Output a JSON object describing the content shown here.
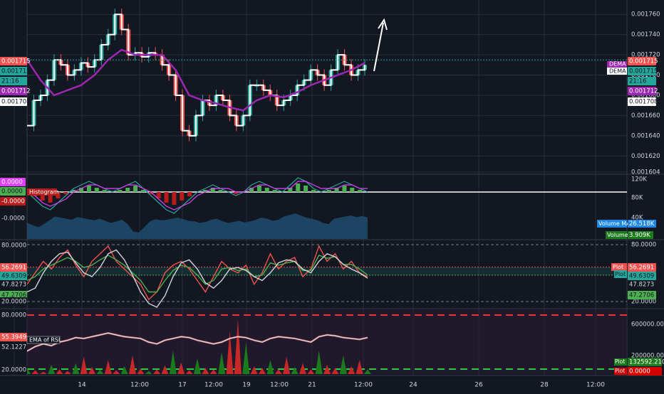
{
  "chart_data": [
    {
      "type": "line",
      "panel": "price",
      "series": [
        {
          "name": "DEMA",
          "color": "#ffffff"
        },
        {
          "name": "",
          "color": "#9c27b0"
        }
      ],
      "candles": {
        "up_color": "#26a69a",
        "down_color": "#ef5350"
      },
      "x_labels": [
        "14",
        "12:00",
        "17",
        "12:00",
        "19",
        "12:00",
        "21",
        "12:00",
        "24",
        "26",
        "28",
        "12:00"
      ],
      "y_ticks": [
        "0.001760",
        "0.001740",
        "0.001720",
        "0.001700",
        "0.001680",
        "0.001660",
        "0.001640",
        "0.001620",
        "0.001604"
      ],
      "ylim": [
        0.001604,
        0.00177
      ],
      "price_series": [
        [
          0,
          0.00165
        ],
        [
          1,
          0.001675
        ],
        [
          2,
          0.00168
        ],
        [
          3,
          0.001695
        ],
        [
          4,
          0.001715
        ],
        [
          5,
          0.00171
        ],
        [
          6,
          0.0017
        ],
        [
          7,
          0.001705
        ],
        [
          8,
          0.001712
        ],
        [
          9,
          0.001708
        ],
        [
          10,
          0.001715
        ],
        [
          11,
          0.00173
        ],
        [
          12,
          0.00174
        ],
        [
          13,
          0.00176
        ],
        [
          14,
          0.001745
        ],
        [
          15,
          0.00172
        ],
        [
          16,
          0.001722
        ],
        [
          17,
          0.001718
        ],
        [
          18,
          0.001722
        ],
        [
          19,
          0.00172
        ],
        [
          20,
          0.00171
        ],
        [
          21,
          0.0017
        ],
        [
          22,
          0.00168
        ],
        [
          23,
          0.001645
        ],
        [
          24,
          0.00164
        ],
        [
          25,
          0.00166
        ],
        [
          26,
          0.001675
        ],
        [
          27,
          0.00167
        ],
        [
          28,
          0.00168
        ],
        [
          29,
          0.001675
        ],
        [
          30,
          0.00166
        ],
        [
          31,
          0.00165
        ],
        [
          32,
          0.00166
        ],
        [
          33,
          0.00169
        ],
        [
          34,
          0.00169
        ],
        [
          35,
          0.001685
        ],
        [
          36,
          0.00168
        ],
        [
          37,
          0.00167
        ],
        [
          38,
          0.001675
        ],
        [
          39,
          0.00168
        ],
        [
          40,
          0.00169
        ],
        [
          41,
          0.001695
        ],
        [
          42,
          0.001705
        ],
        [
          43,
          0.0017
        ],
        [
          44,
          0.00169
        ],
        [
          45,
          0.001705
        ],
        [
          46,
          0.00172
        ],
        [
          47,
          0.00171
        ],
        [
          48,
          0.0017
        ],
        [
          49,
          0.001705
        ],
        [
          50,
          0.00171
        ]
      ],
      "ma_series": [
        [
          0,
          0.001715
        ],
        [
          2,
          0.001695
        ],
        [
          4,
          0.00168
        ],
        [
          6,
          0.001685
        ],
        [
          8,
          0.00169
        ],
        [
          10,
          0.0017
        ],
        [
          12,
          0.001715
        ],
        [
          14,
          0.001725
        ],
        [
          16,
          0.00172
        ],
        [
          18,
          0.00172
        ],
        [
          20,
          0.00172
        ],
        [
          22,
          0.001705
        ],
        [
          24,
          0.00168
        ],
        [
          26,
          0.001675
        ],
        [
          28,
          0.001672
        ],
        [
          30,
          0.001668
        ],
        [
          32,
          0.001665
        ],
        [
          34,
          0.001675
        ],
        [
          36,
          0.00168
        ],
        [
          38,
          0.001678
        ],
        [
          40,
          0.001683
        ],
        [
          42,
          0.00169
        ],
        [
          44,
          0.001695
        ],
        [
          46,
          0.0017
        ],
        [
          48,
          0.001705
        ],
        [
          50,
          0.001712
        ]
      ],
      "price_tags": [
        {
          "label": "0.001715",
          "color": "#ef5350"
        },
        {
          "label": "0.001715",
          "color": "#26a69a"
        },
        {
          "label": "21:16",
          "color": "#26a69a"
        },
        {
          "label": "0.001712",
          "color": "#9c27b0"
        },
        {
          "label": "0.001708",
          "color": "#ffffff"
        }
      ],
      "right_tags": [
        {
          "label": "0.001715",
          "color": "#ef5350"
        },
        {
          "label": "0.001715",
          "color": "#26a69a"
        },
        {
          "label": "21:16",
          "color": "#26a69a"
        },
        {
          "label": "0.001712",
          "color": "#9c27b0"
        },
        {
          "label": "0.001708",
          "color": "#ffffff"
        }
      ],
      "legend_right": [
        "DEMA",
        "DEMA"
      ]
    },
    {
      "type": "area",
      "panel": "macd-volume",
      "left_tags": [
        {
          "label": "0.0000",
          "color": "#e040fb"
        },
        {
          "label": "0.0000",
          "color": "#4caf50"
        },
        {
          "label": "-0.0000",
          "color": "#b71c1c"
        },
        {
          "label": "-0.0000",
          "color": "#131722"
        }
      ],
      "histogram_label": "Histogram",
      "right_ticks": [
        "120K",
        "80K",
        "40K"
      ],
      "volume_ma_label": "Volume MA",
      "volume_ma_value": "26.518K",
      "volume_label": "Volume",
      "volume_value": "3.909K",
      "volume": [
        30,
        26,
        22,
        28,
        35,
        42,
        40,
        38,
        36,
        41,
        39,
        37,
        35,
        38,
        34,
        30,
        33,
        36,
        28,
        14,
        12,
        22,
        33,
        37,
        35,
        36,
        38,
        40,
        37,
        34,
        33,
        30,
        32,
        36,
        38,
        33,
        30,
        32,
        34,
        31,
        33,
        36,
        40,
        38,
        34,
        36,
        42,
        45,
        48,
        44,
        40,
        38,
        35,
        30,
        28,
        38,
        40,
        42,
        44,
        41,
        43,
        40
      ],
      "macd": [
        0,
        -2,
        -4,
        -5,
        -3,
        -1,
        1,
        2,
        3,
        2,
        1,
        0,
        1,
        2,
        3,
        1,
        -1,
        -3,
        -5,
        -6,
        -4,
        -2,
        0,
        1,
        2,
        1,
        0,
        -1,
        0,
        2,
        3,
        2,
        1,
        0,
        2,
        4,
        3,
        1,
        0,
        1,
        2,
        3,
        2,
        1,
        0
      ],
      "signal": [
        0,
        -1,
        -3,
        -4,
        -3,
        -2,
        0,
        1,
        2,
        2,
        1,
        1,
        1,
        2,
        2,
        1,
        0,
        -2,
        -4,
        -5,
        -4,
        -3,
        -1,
        0,
        1,
        1,
        1,
        0,
        0,
        1,
        2,
        2,
        1,
        1,
        1,
        3,
        3,
        2,
        1,
        1,
        1,
        2,
        2,
        1,
        1
      ]
    },
    {
      "type": "line",
      "panel": "stoch",
      "right_ticks": [
        "80.0000",
        "20.0000"
      ],
      "left_tags": [
        {
          "label": "80.0000",
          "color": "#131722"
        },
        {
          "label": "56.2691",
          "color": "#ef5350"
        },
        {
          "label": "49.6309",
          "color": "#26a69a"
        },
        {
          "label": "47.8273",
          "color": "#131722"
        },
        {
          "label": "47.2706",
          "color": "#4caf50"
        },
        {
          "label": "20.0000",
          "color": "#131722"
        }
      ],
      "right_tags": [
        {
          "label": "56.2691",
          "color": "#ef5350"
        },
        {
          "label": "49.6309",
          "color": "#26a69a"
        },
        {
          "label": "47.8273",
          "color": "#131722"
        },
        {
          "label": "47.2706",
          "color": "#4caf50"
        }
      ],
      "plot_labels": [
        "Plot",
        "Plot"
      ],
      "series": [
        {
          "name": "",
          "color": "#ef5350",
          "values": [
            40,
            55,
            70,
            60,
            75,
            85,
            65,
            50,
            70,
            80,
            90,
            70,
            60,
            50,
            40,
            20,
            30,
            55,
            65,
            70,
            60,
            45,
            30,
            50,
            70,
            60,
            55,
            65,
            40,
            55,
            80,
            60,
            70,
            75,
            50,
            60,
            90,
            70,
            80,
            60,
            70,
            55,
            50
          ]
        },
        {
          "name": "",
          "color": "#4caf50",
          "values": [
            45,
            50,
            60,
            65,
            70,
            75,
            70,
            62,
            65,
            72,
            78,
            72,
            65,
            55,
            45,
            30,
            30,
            45,
            58,
            65,
            62,
            52,
            40,
            45,
            60,
            62,
            58,
            60,
            50,
            52,
            68,
            65,
            68,
            70,
            58,
            58,
            78,
            74,
            76,
            66,
            66,
            60,
            52
          ]
        },
        {
          "name": "",
          "color": "#d1d4dc",
          "values": [
            30,
            35,
            55,
            70,
            80,
            82,
            68,
            55,
            50,
            62,
            80,
            85,
            72,
            52,
            30,
            15,
            10,
            25,
            50,
            68,
            72,
            60,
            42,
            35,
            45,
            60,
            62,
            58,
            50,
            45,
            55,
            68,
            72,
            70,
            60,
            55,
            70,
            80,
            76,
            66,
            60,
            55,
            48
          ]
        }
      ]
    },
    {
      "type": "area",
      "panel": "rsi",
      "right_ticks": [
        "600000.0000",
        "200000.0000"
      ],
      "left_tags": [
        {
          "label": "80.0000",
          "color": "#131722"
        },
        {
          "label": "55.3949",
          "color": "#ef5350"
        },
        {
          "label": "52.1227",
          "color": "#131722"
        },
        {
          "label": "20.0000",
          "color": "#131722"
        }
      ],
      "ema_label": "EMA of RSI",
      "right_tags": [
        {
          "label": "Plot",
          "value": "132592.2100",
          "color": "#1b7a1b"
        },
        {
          "label": "Plot",
          "value": "0.0000",
          "color": "#d50000"
        }
      ],
      "rsi": [
        40,
        45,
        48,
        46,
        50,
        52,
        55,
        54,
        56,
        58,
        60,
        58,
        56,
        55,
        54,
        50,
        48,
        52,
        54,
        56,
        55,
        52,
        50,
        48,
        50,
        54,
        56,
        55,
        52,
        50,
        54,
        56,
        55,
        54,
        52,
        50,
        56,
        58,
        57,
        55,
        54,
        53,
        55
      ],
      "volume_bars": [
        8,
        5,
        3,
        12,
        6,
        4,
        14,
        22,
        9,
        6,
        18,
        5,
        10,
        24,
        7,
        4,
        6,
        11,
        30,
        15,
        5,
        20,
        8,
        6,
        28,
        55,
        70,
        40,
        10,
        8,
        18,
        6,
        22,
        9,
        14,
        6,
        30,
        12,
        8,
        24,
        10,
        18,
        6
      ]
    }
  ]
}
